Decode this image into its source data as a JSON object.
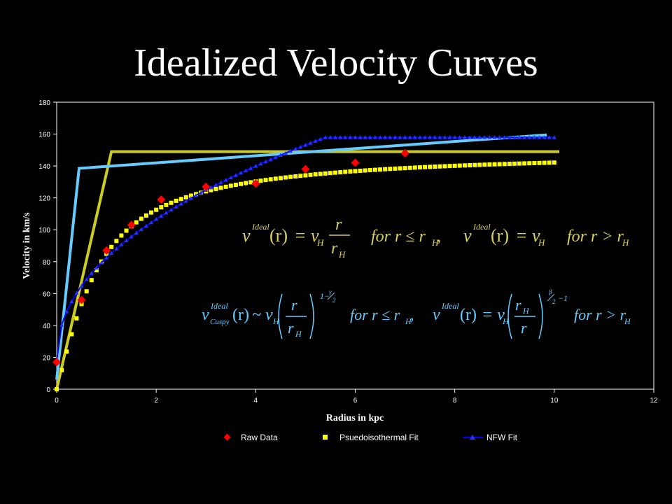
{
  "slide": {
    "title": "Idealized Velocity Curves"
  },
  "colors": {
    "raw": "#ff0000",
    "pseudo": "#ffff00",
    "nfw": "#0000ff",
    "ideal_yellow": "#cccc22",
    "ideal_blue": "#66ccff",
    "eq_yellow": "#d8d060",
    "eq_blue": "#66ccff"
  },
  "equations": {
    "yellow": {
      "f1_v": "v",
      "f1_sup": "Ideal",
      "f1_r": "(r)",
      "f1_eq": "= v",
      "f1_sub": "H",
      "f1_num": "r",
      "f1_den": "r",
      "f1_den_sub": "H",
      "f1_cond": "for r ≤ r",
      "f1_cond_sub": "H",
      "f1_comma": ",",
      "f2_v": "v",
      "f2_sup": "Ideal",
      "f2_r": "(r)",
      "f2_eq": "= v",
      "f2_sub": "H",
      "f2_cond": "for r > r",
      "f2_cond_sub": "H"
    },
    "blue": {
      "f1_v": "v",
      "f1_sup": "Ideal",
      "f1_sub": "Cuspy",
      "f1_r": "(r)",
      "f1_eq": "~ v",
      "f1_hsub": "H",
      "f1_num": "r",
      "f1_den": "r",
      "f1_den_sub": "H",
      "f1_exp": "1−",
      "f1_exp_num": "γ",
      "f1_exp_den": "2",
      "f1_cond": "for r ≤ r",
      "f1_cond_sub": "H",
      "f1_comma": ",",
      "f2_v": "v",
      "f2_sup": "Ideal",
      "f2_r": "(r)",
      "f2_eq": "= v",
      "f2_hsub": "H",
      "f2_num": "r",
      "f2_num_sub": "H",
      "f2_den": "r",
      "f2_exp_num": "β",
      "f2_exp_den": "2",
      "f2_exp": "−1",
      "f2_cond": "for r > r",
      "f2_cond_sub": "H"
    }
  },
  "chart_data": {
    "type": "scatter",
    "xlabel": "Radius in kpc",
    "ylabel": "Velocity in km/s",
    "xlim": [
      0,
      12
    ],
    "ylim": [
      0,
      180
    ],
    "xticks": [
      0,
      2,
      4,
      6,
      8,
      10,
      12
    ],
    "yticks": [
      0,
      20,
      40,
      60,
      80,
      100,
      120,
      140,
      160,
      180
    ],
    "grid": false,
    "legend_position": "bottom",
    "series": [
      {
        "name": "Raw Data",
        "marker": "diamond",
        "x": [
          0.0,
          0.5,
          1.0,
          1.5,
          2.1,
          3.0,
          4.0,
          5.0,
          6.0,
          7.0
        ],
        "y": [
          17,
          56,
          87,
          103,
          119,
          127,
          129,
          138,
          142,
          148
        ]
      },
      {
        "name": "Psuedoisothermal Fit",
        "marker": "square",
        "x_start": 0.0,
        "x_end": 10.0,
        "x_step": 0.1,
        "vmax": 150.5,
        "rc": 0.72
      },
      {
        "name": "NFW Fit",
        "marker": "triangle-line",
        "x_start": 0.0,
        "x_end": 10.0,
        "x_step": 0.1,
        "v0": 18,
        "k": 3.1,
        "exponent": 0.46
      }
    ],
    "ideal_lines": [
      {
        "x": [
          0.0,
          1.1,
          10.1
        ],
        "y": [
          0,
          149,
          149
        ]
      },
      {
        "x": [
          0.0,
          0.45,
          9.85
        ],
        "y": [
          6,
          138.5,
          159.5
        ]
      }
    ]
  }
}
